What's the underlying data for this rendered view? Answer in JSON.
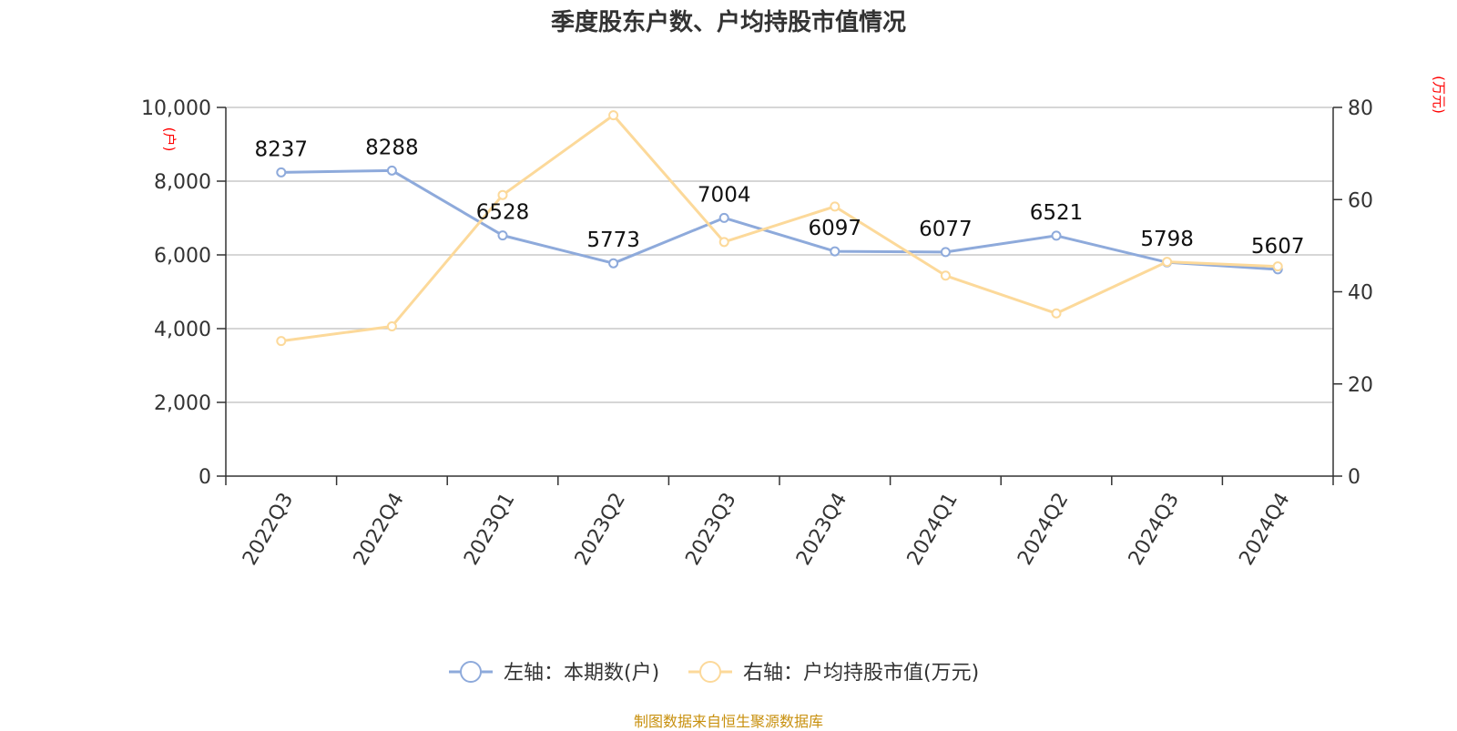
{
  "chart_data": {
    "type": "line",
    "title": "季度股东户数、户均持股市值情况",
    "categories": [
      "2022Q3",
      "2022Q4",
      "2023Q1",
      "2023Q2",
      "2023Q3",
      "2023Q4",
      "2024Q1",
      "2024Q2",
      "2024Q3",
      "2024Q4"
    ],
    "series": [
      {
        "name": "左轴：本期数(户)",
        "axis": "left",
        "color": "#8eaadb",
        "values": [
          8237,
          8288,
          6528,
          5773,
          7004,
          6097,
          6077,
          6521,
          5798,
          5607
        ],
        "data_labels": [
          "8237",
          "8288",
          "6528",
          "5773",
          "7004",
          "6097",
          "6077",
          "6521",
          "5798",
          "5607"
        ]
      },
      {
        "name": "右轴：户均持股市值(万元)",
        "axis": "right",
        "color": "#fcd99a",
        "values": [
          29.3,
          32.5,
          61.0,
          78.3,
          50.8,
          58.5,
          43.5,
          35.3,
          46.5,
          45.5
        ]
      }
    ],
    "left_axis": {
      "unit": "(户)",
      "ylim": [
        0,
        10000
      ],
      "ticks": [
        0,
        2000,
        4000,
        6000,
        8000,
        10000
      ],
      "tick_labels": [
        "0",
        "2,000",
        "4,000",
        "6,000",
        "8,000",
        "10,000"
      ]
    },
    "right_axis": {
      "unit": "(万元)",
      "ylim": [
        0,
        80
      ],
      "ticks": [
        0,
        20,
        40,
        60,
        80
      ],
      "tick_labels": [
        "0",
        "20",
        "40",
        "60",
        "80"
      ]
    },
    "grid": true,
    "legend_position": "bottom-center"
  },
  "source_text": "制图数据来自恒生聚源数据库"
}
